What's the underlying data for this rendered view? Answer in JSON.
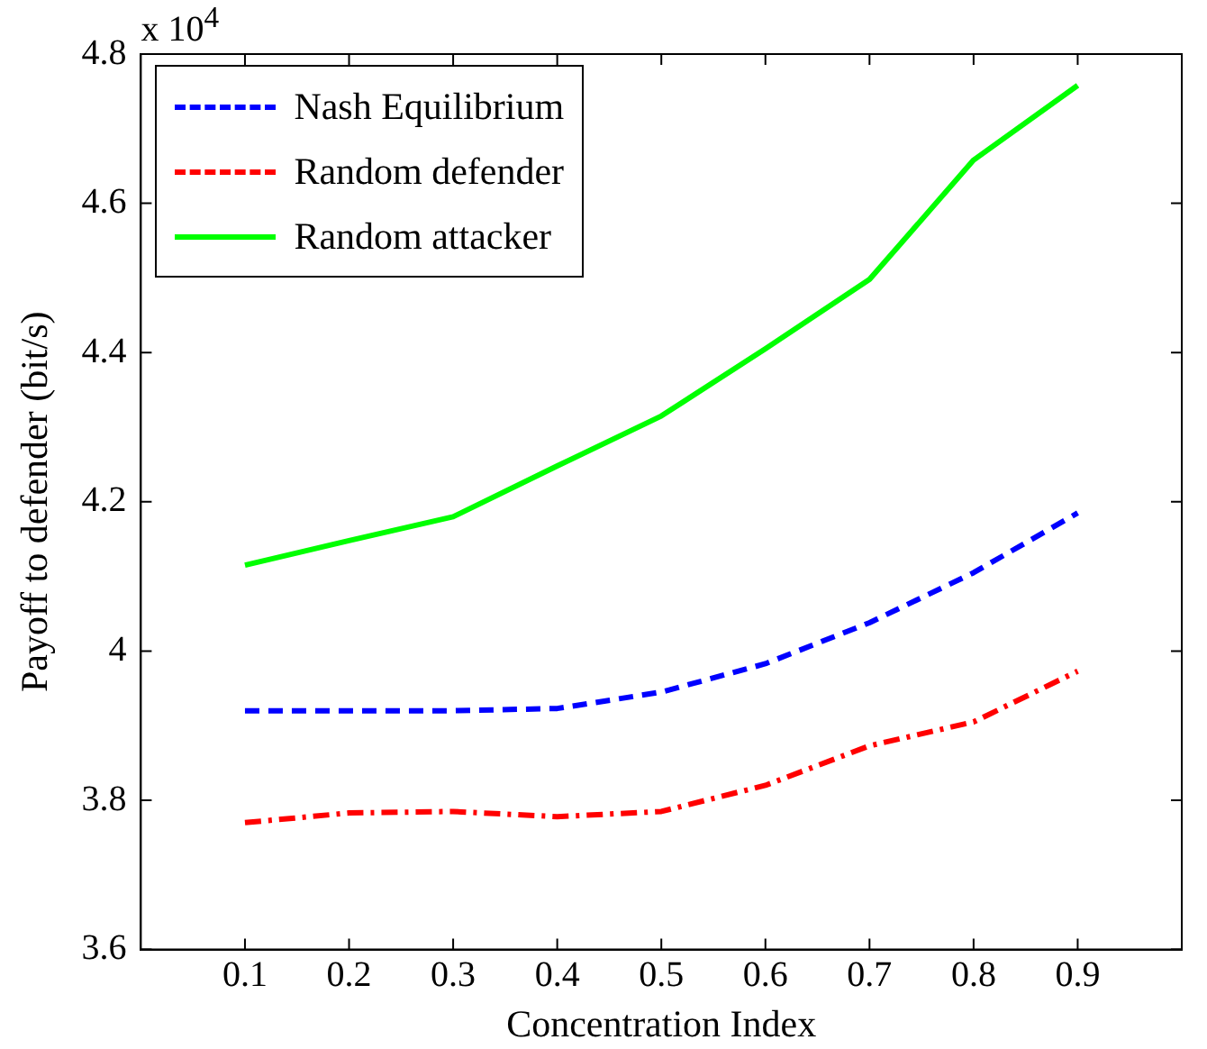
{
  "chart_data": {
    "type": "line",
    "xlabel": "Concentration Index",
    "ylabel": "Payoff to defender (bit/s)",
    "annotations": [
      "x 10$^{4}$"
    ],
    "x": [
      0.1,
      0.2,
      0.3,
      0.4,
      0.5,
      0.6,
      0.7,
      0.8,
      0.9
    ],
    "series": [
      {
        "name": "Nash Equilibrium",
        "color": "#0000ff",
        "line_style": "dashed",
        "values": [
          3.92,
          3.92,
          3.92,
          3.923,
          3.945,
          3.983,
          4.038,
          4.105,
          4.185
        ]
      },
      {
        "name": "Random defender",
        "color": "#ff0000",
        "line_style": "dashdot",
        "values": [
          3.77,
          3.783,
          3.785,
          3.778,
          3.785,
          3.82,
          3.873,
          3.905,
          3.973
        ]
      },
      {
        "name": "Random attacker",
        "color": "#00ff00",
        "line_style": "solid",
        "values": [
          4.115,
          4.148,
          4.18,
          4.248,
          4.315,
          4.405,
          4.498,
          4.658,
          4.758
        ]
      }
    ],
    "xlim": [
      0,
      1
    ],
    "xticks": [
      0.1,
      0.2,
      0.3,
      0.4,
      0.5,
      0.6,
      0.7,
      0.8,
      0.9
    ],
    "ylim": [
      3.6,
      4.8
    ],
    "yticks": [
      3.6,
      3.8,
      4,
      4.2,
      4.4,
      4.6,
      4.8
    ],
    "grid": false,
    "legend": "top left",
    "marker": "none"
  }
}
